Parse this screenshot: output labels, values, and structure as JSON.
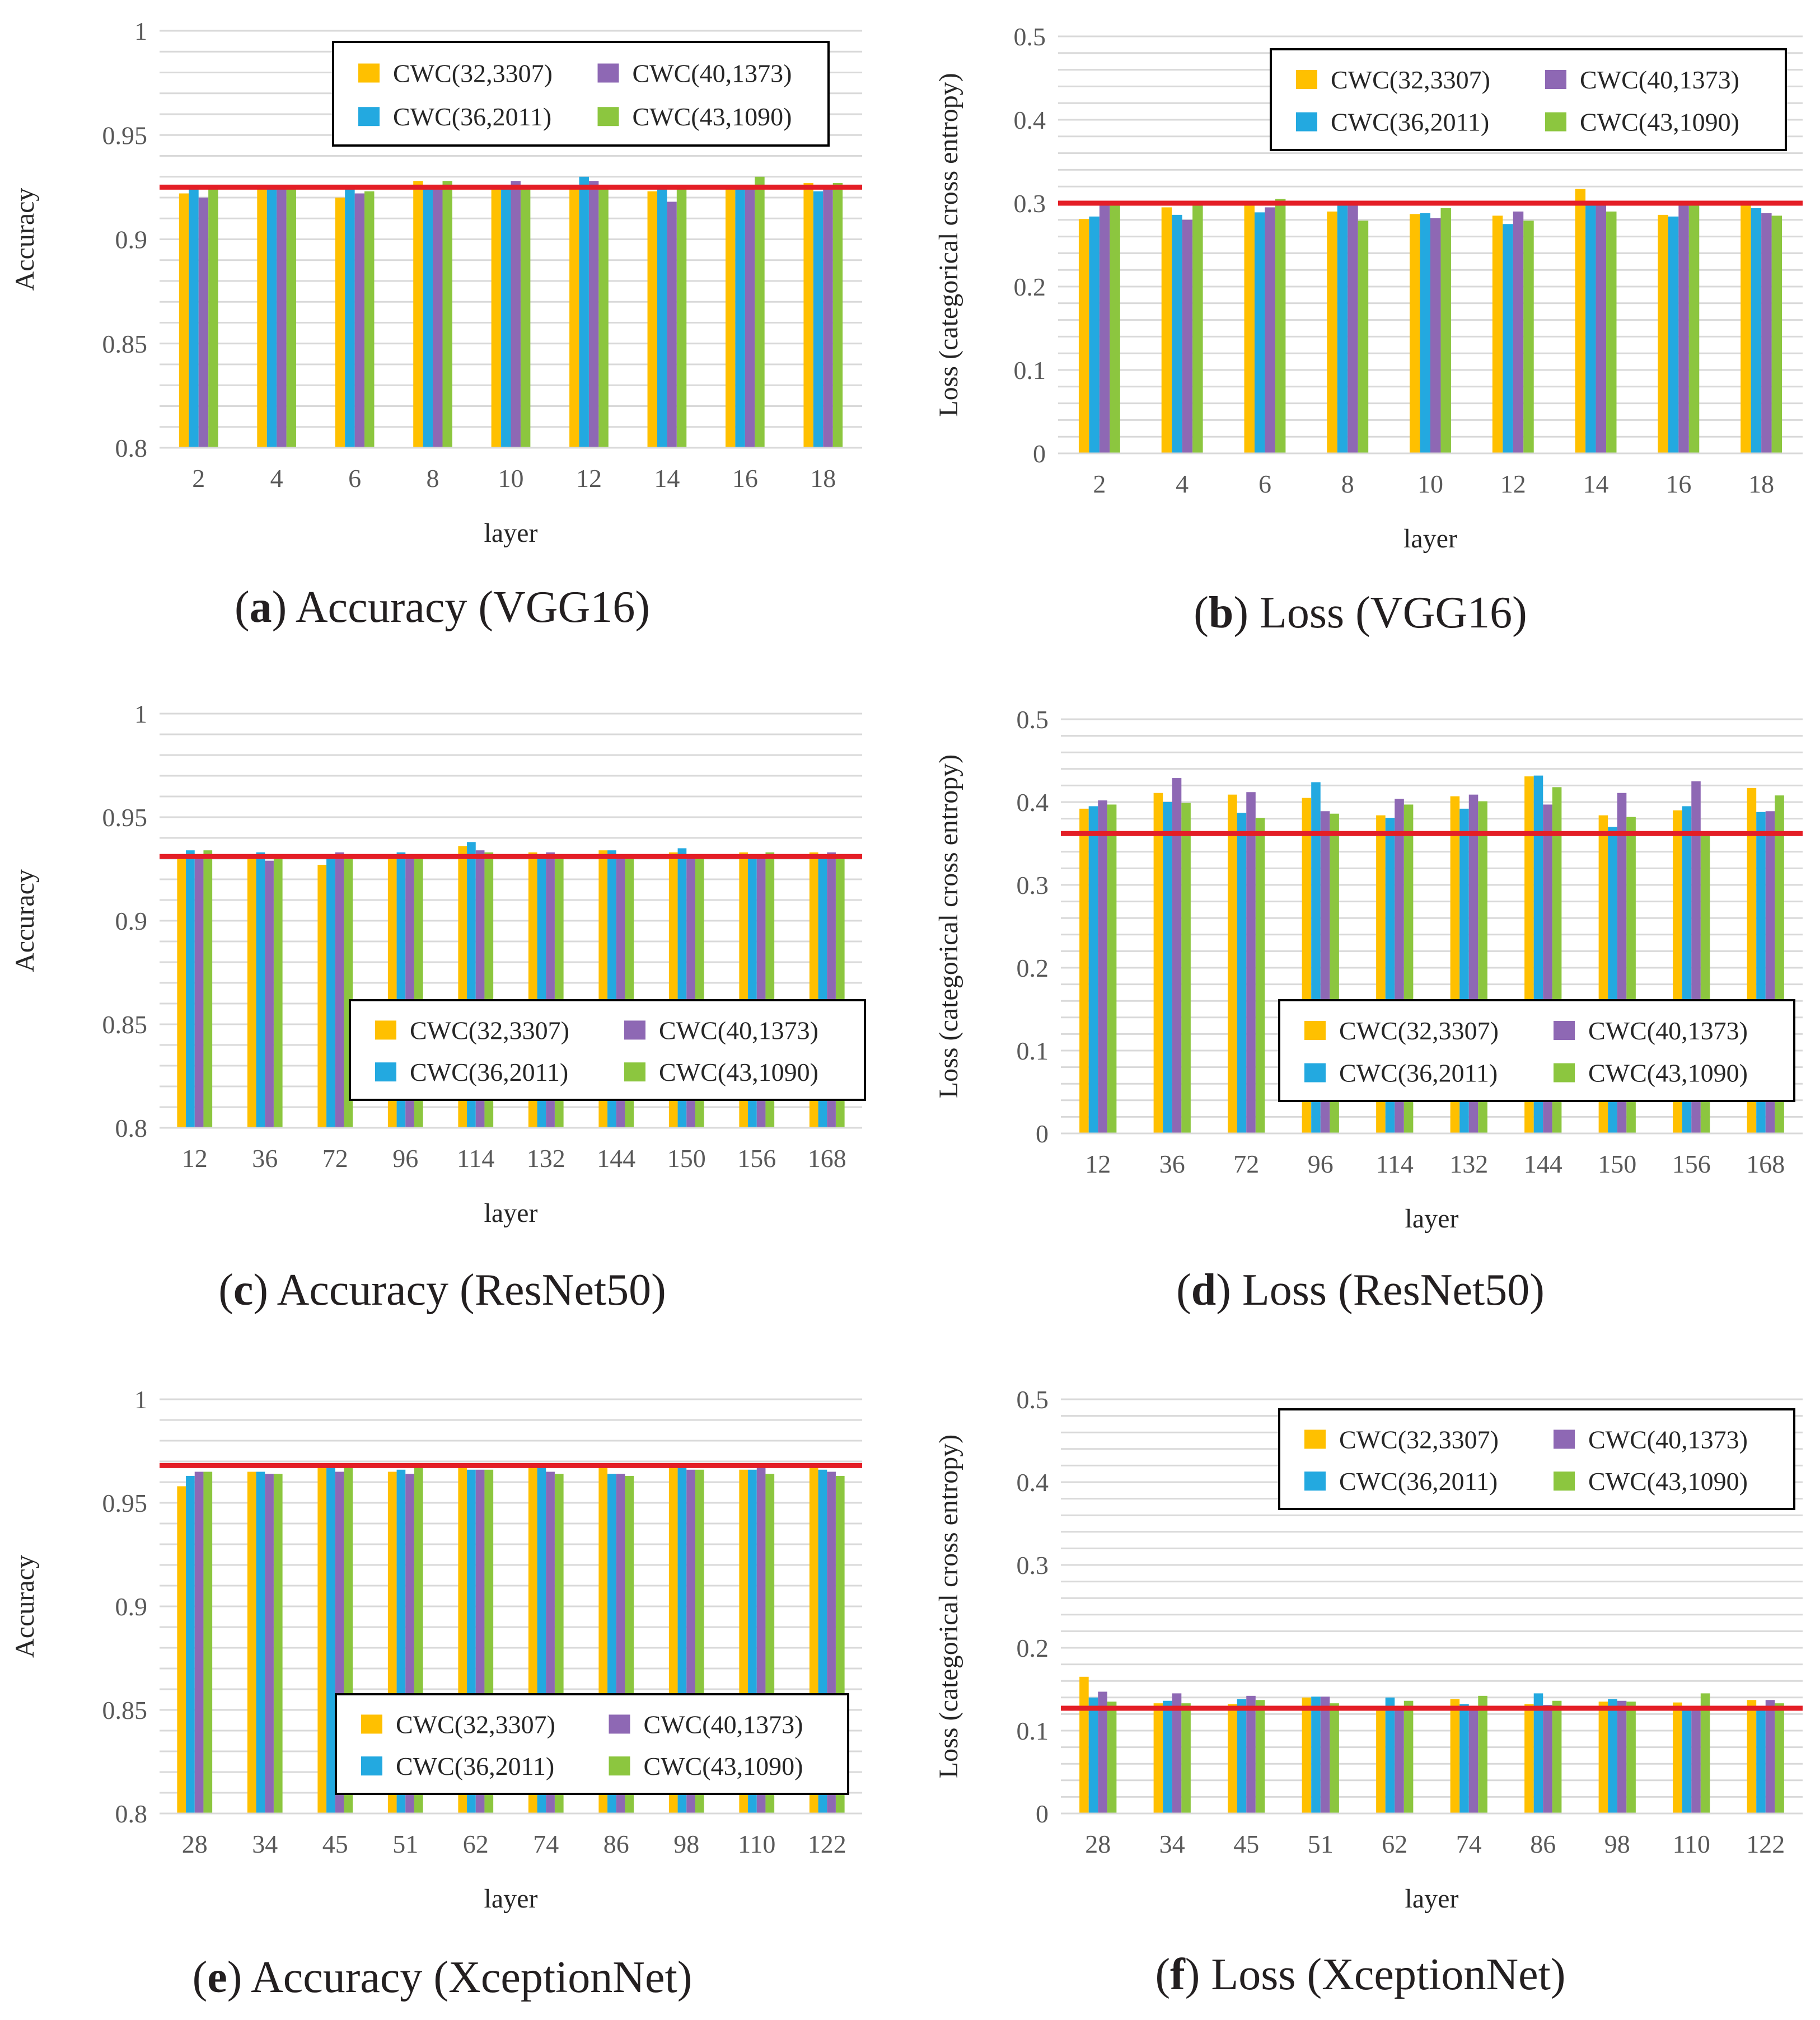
{
  "figure": {
    "colors": {
      "CWC(32,3307)": "#FFC000",
      "CWC(36,2011)": "#23A9E0",
      "CWC(40,1373)": "#8E68B4",
      "CWC(43,1090)": "#8CC63F",
      "baseline": "#E41E26",
      "grid": "#D9D9D9"
    }
  },
  "chart_data": [
    {
      "id": "a",
      "type": "bar",
      "title": "Accuracy (VGG16)",
      "caption_letter": "a",
      "caption_text": "Accuracy (VGG16)",
      "xlabel": "layer",
      "ylabel": "Accuracy",
      "categories": [
        "2",
        "4",
        "6",
        "8",
        "10",
        "12",
        "14",
        "16",
        "18"
      ],
      "ylim": [
        0.8,
        1.0
      ],
      "yticks": [
        "0.8",
        "0.85",
        "0.9",
        "0.95",
        "1"
      ],
      "ytick_values": [
        0.8,
        0.85,
        0.9,
        0.95,
        1.0
      ],
      "minor_grid_step": 0.01,
      "baseline": 0.925,
      "legend": {
        "position": "top-right",
        "entries": [
          "CWC(32,3307)",
          "CWC(40,1373)",
          "CWC(36,2011)",
          "CWC(43,1090)"
        ]
      },
      "series": [
        {
          "name": "CWC(32,3307)",
          "values": [
            0.922,
            0.925,
            0.92,
            0.928,
            0.925,
            0.925,
            0.923,
            0.925,
            0.927
          ]
        },
        {
          "name": "CWC(36,2011)",
          "values": [
            0.925,
            0.924,
            0.925,
            0.924,
            0.925,
            0.93,
            0.925,
            0.924,
            0.923
          ]
        },
        {
          "name": "CWC(40,1373)",
          "values": [
            0.92,
            0.924,
            0.922,
            0.924,
            0.928,
            0.928,
            0.918,
            0.925,
            0.926
          ]
        },
        {
          "name": "CWC(43,1090)",
          "values": [
            0.925,
            0.924,
            0.923,
            0.928,
            0.924,
            0.926,
            0.925,
            0.93,
            0.927
          ]
        }
      ]
    },
    {
      "id": "b",
      "type": "bar",
      "title": "Loss (VGG16)",
      "caption_letter": "b",
      "caption_text": "Loss (VGG16)",
      "xlabel": "layer",
      "ylabel": "Loss (categorical cross entropy)",
      "categories": [
        "2",
        "4",
        "6",
        "8",
        "10",
        "12",
        "14",
        "16",
        "18"
      ],
      "ylim": [
        0,
        0.5
      ],
      "yticks": [
        "0",
        "0.1",
        "0.2",
        "0.3",
        "0.4",
        "0.5"
      ],
      "ytick_values": [
        0,
        0.1,
        0.2,
        0.3,
        0.4,
        0.5
      ],
      "minor_grid_step": 0.02,
      "baseline": 0.3,
      "legend": {
        "position": "top-right",
        "entries": [
          "CWC(32,3307)",
          "CWC(40,1373)",
          "CWC(36,2011)",
          "CWC(43,1090)"
        ]
      },
      "series": [
        {
          "name": "CWC(32,3307)",
          "values": [
            0.281,
            0.295,
            0.3,
            0.29,
            0.287,
            0.285,
            0.317,
            0.286,
            0.3
          ]
        },
        {
          "name": "CWC(36,2011)",
          "values": [
            0.284,
            0.286,
            0.289,
            0.3,
            0.288,
            0.275,
            0.3,
            0.284,
            0.294
          ]
        },
        {
          "name": "CWC(40,1373)",
          "values": [
            0.3,
            0.28,
            0.295,
            0.3,
            0.282,
            0.29,
            0.3,
            0.3,
            0.288
          ]
        },
        {
          "name": "CWC(43,1090)",
          "values": [
            0.3,
            0.3,
            0.305,
            0.279,
            0.294,
            0.279,
            0.29,
            0.3,
            0.285
          ]
        }
      ]
    },
    {
      "id": "c",
      "type": "bar",
      "title": "Accuracy (ResNet50)",
      "caption_letter": "c",
      "caption_text": "Accuracy (ResNet50)",
      "xlabel": "layer",
      "ylabel": "Accuracy",
      "categories": [
        "12",
        "36",
        "72",
        "96",
        "114",
        "132",
        "144",
        "150",
        "156",
        "168"
      ],
      "ylim": [
        0.8,
        1.0
      ],
      "yticks": [
        "0.8",
        "0.85",
        "0.9",
        "0.95",
        "1"
      ],
      "ytick_values": [
        0.8,
        0.85,
        0.9,
        0.95,
        1.0
      ],
      "minor_grid_step": 0.01,
      "baseline": 0.931,
      "legend": {
        "position": "bottom-right",
        "entries": [
          "CWC(32,3307)",
          "CWC(40,1373)",
          "CWC(36,2011)",
          "CWC(43,1090)"
        ]
      },
      "series": [
        {
          "name": "CWC(32,3307)",
          "values": [
            0.931,
            0.931,
            0.927,
            0.931,
            0.936,
            0.933,
            0.934,
            0.933,
            0.933,
            0.933
          ]
        },
        {
          "name": "CWC(36,2011)",
          "values": [
            0.934,
            0.933,
            0.931,
            0.933,
            0.938,
            0.932,
            0.934,
            0.935,
            0.93,
            0.932
          ]
        },
        {
          "name": "CWC(40,1373)",
          "values": [
            0.931,
            0.929,
            0.933,
            0.932,
            0.934,
            0.933,
            0.932,
            0.931,
            0.931,
            0.933
          ]
        },
        {
          "name": "CWC(43,1090)",
          "values": [
            0.934,
            0.931,
            0.931,
            0.931,
            0.933,
            0.932,
            0.932,
            0.931,
            0.933,
            0.931
          ]
        }
      ]
    },
    {
      "id": "d",
      "type": "bar",
      "title": "Loss (ResNet50)",
      "caption_letter": "d",
      "caption_text": "Loss (ResNet50)",
      "xlabel": "layer",
      "ylabel": "Loss (categorical cross entropy)",
      "categories": [
        "12",
        "36",
        "72",
        "96",
        "114",
        "132",
        "144",
        "150",
        "156",
        "168"
      ],
      "ylim": [
        0,
        0.5
      ],
      "yticks": [
        "0",
        "0.1",
        "0.2",
        "0.3",
        "0.4",
        "0.5"
      ],
      "ytick_values": [
        0,
        0.1,
        0.2,
        0.3,
        0.4,
        0.5
      ],
      "minor_grid_step": 0.02,
      "baseline": 0.362,
      "legend": {
        "position": "bottom-right",
        "entries": [
          "CWC(32,3307)",
          "CWC(40,1373)",
          "CWC(36,2011)",
          "CWC(43,1090)"
        ]
      },
      "series": [
        {
          "name": "CWC(32,3307)",
          "values": [
            0.392,
            0.411,
            0.409,
            0.405,
            0.384,
            0.407,
            0.431,
            0.384,
            0.39,
            0.417
          ]
        },
        {
          "name": "CWC(36,2011)",
          "values": [
            0.395,
            0.4,
            0.387,
            0.424,
            0.381,
            0.392,
            0.432,
            0.37,
            0.395,
            0.388
          ]
        },
        {
          "name": "CWC(40,1373)",
          "values": [
            0.402,
            0.429,
            0.412,
            0.389,
            0.404,
            0.409,
            0.397,
            0.411,
            0.425,
            0.389
          ]
        },
        {
          "name": "CWC(43,1090)",
          "values": [
            0.397,
            0.399,
            0.381,
            0.386,
            0.397,
            0.401,
            0.418,
            0.382,
            0.362,
            0.408
          ]
        }
      ]
    },
    {
      "id": "e",
      "type": "bar",
      "title": "Accuracy (XceptionNet)",
      "caption_letter": "e",
      "caption_text": "Accuracy (XceptionNet)",
      "xlabel": "layer",
      "ylabel": "Accuracy",
      "categories": [
        "28",
        "34",
        "45",
        "51",
        "62",
        "74",
        "86",
        "98",
        "110",
        "122"
      ],
      "ylim": [
        0.8,
        1.0
      ],
      "yticks": [
        "0.8",
        "0.85",
        "0.9",
        "0.95",
        "1"
      ],
      "ytick_values": [
        0.8,
        0.85,
        0.9,
        0.95,
        1.0
      ],
      "minor_grid_step": 0.01,
      "baseline": 0.968,
      "legend": {
        "position": "bottom-right",
        "entries": [
          "CWC(32,3307)",
          "CWC(40,1373)",
          "CWC(36,2011)",
          "CWC(43,1090)"
        ]
      },
      "series": [
        {
          "name": "CWC(32,3307)",
          "values": [
            0.958,
            0.965,
            0.968,
            0.965,
            0.968,
            0.968,
            0.968,
            0.968,
            0.966,
            0.968
          ]
        },
        {
          "name": "CWC(36,2011)",
          "values": [
            0.963,
            0.965,
            0.967,
            0.966,
            0.966,
            0.968,
            0.964,
            0.968,
            0.966,
            0.966
          ]
        },
        {
          "name": "CWC(40,1373)",
          "values": [
            0.965,
            0.964,
            0.965,
            0.964,
            0.966,
            0.965,
            0.964,
            0.966,
            0.967,
            0.965
          ]
        },
        {
          "name": "CWC(43,1090)",
          "values": [
            0.965,
            0.964,
            0.968,
            0.968,
            0.966,
            0.964,
            0.963,
            0.966,
            0.964,
            0.963
          ]
        }
      ]
    },
    {
      "id": "f",
      "type": "bar",
      "title": "Loss (XceptionNet)",
      "caption_letter": "f",
      "caption_text": "Loss (XceptionNet)",
      "xlabel": "layer",
      "ylabel": "Loss (categorical cross entropy)",
      "categories": [
        "28",
        "34",
        "45",
        "51",
        "62",
        "74",
        "86",
        "98",
        "110",
        "122"
      ],
      "ylim": [
        0,
        0.5
      ],
      "yticks": [
        "0",
        "0.1",
        "0.2",
        "0.3",
        "0.4",
        "0.5"
      ],
      "ytick_values": [
        0,
        0.1,
        0.2,
        0.3,
        0.4,
        0.5
      ],
      "minor_grid_step": 0.02,
      "baseline": 0.127,
      "legend": {
        "position": "top-right",
        "entries": [
          "CWC(32,3307)",
          "CWC(40,1373)",
          "CWC(36,2011)",
          "CWC(43,1090)"
        ]
      },
      "series": [
        {
          "name": "CWC(32,3307)",
          "values": [
            0.165,
            0.133,
            0.132,
            0.14,
            0.127,
            0.138,
            0.132,
            0.135,
            0.134,
            0.137
          ]
        },
        {
          "name": "CWC(36,2011)",
          "values": [
            0.14,
            0.136,
            0.138,
            0.141,
            0.14,
            0.132,
            0.145,
            0.138,
            0.127,
            0.13
          ]
        },
        {
          "name": "CWC(40,1373)",
          "values": [
            0.147,
            0.145,
            0.142,
            0.141,
            0.13,
            0.13,
            0.131,
            0.136,
            0.13,
            0.137
          ]
        },
        {
          "name": "CWC(43,1090)",
          "values": [
            0.135,
            0.133,
            0.137,
            0.133,
            0.136,
            0.142,
            0.136,
            0.135,
            0.145,
            0.133
          ]
        }
      ]
    }
  ]
}
